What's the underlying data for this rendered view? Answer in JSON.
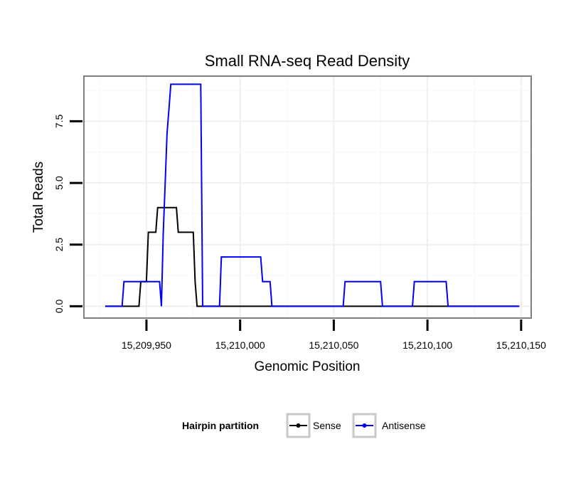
{
  "chart_data": {
    "type": "line",
    "title": "Small RNA-seq Read Density",
    "xlabel": "Genomic Position",
    "ylabel": "Total Reads",
    "xlim": [
      15209917,
      15210155
    ],
    "ylim": [
      -0.45,
      9.3
    ],
    "x_ticks": [
      15209950,
      15210000,
      15210050,
      15210100,
      15210150
    ],
    "x_tick_labels": [
      "15,209,950",
      "15,210,000",
      "15,210,050",
      "15,210,100",
      "15,210,150"
    ],
    "y_ticks": [
      0,
      2.5,
      5,
      7.5
    ],
    "y_tick_labels": [
      "0.0",
      "2.5",
      "5.0",
      "7.5"
    ],
    "grid": true,
    "legend": {
      "title": "Hairpin partition",
      "position": "bottom",
      "entries": [
        "Sense",
        "Antisense"
      ]
    },
    "series": [
      {
        "name": "Sense",
        "color": "#000000",
        "points": [
          [
            15209928,
            0
          ],
          [
            15209946,
            0
          ],
          [
            15209947,
            1
          ],
          [
            15209950,
            1
          ],
          [
            15209951,
            3
          ],
          [
            15209955,
            3
          ],
          [
            15209956,
            4
          ],
          [
            15209966,
            4
          ],
          [
            15209967,
            3
          ],
          [
            15209975,
            3
          ],
          [
            15209976,
            1
          ],
          [
            15209977,
            0
          ],
          [
            15210149,
            0
          ]
        ]
      },
      {
        "name": "Antisense",
        "color": "#0000ff",
        "points": [
          [
            15209928,
            0
          ],
          [
            15209937,
            0
          ],
          [
            15209938,
            1
          ],
          [
            15209946,
            1
          ],
          [
            15209947,
            1
          ],
          [
            15209957,
            1
          ],
          [
            15209958,
            0
          ],
          [
            15209959,
            3
          ],
          [
            15209960,
            5
          ],
          [
            15209961,
            7
          ],
          [
            15209962,
            8
          ],
          [
            15209963,
            9
          ],
          [
            15209979,
            9
          ],
          [
            15209980,
            0
          ],
          [
            15209989,
            0
          ],
          [
            15209990,
            2
          ],
          [
            15210011,
            2
          ],
          [
            15210012,
            1
          ],
          [
            15210016,
            1
          ],
          [
            15210017,
            0
          ],
          [
            15210055,
            0
          ],
          [
            15210056,
            1
          ],
          [
            15210075,
            1
          ],
          [
            15210076,
            0
          ],
          [
            15210092,
            0
          ],
          [
            15210093,
            1
          ],
          [
            15210110,
            1
          ],
          [
            15210111,
            0
          ],
          [
            15210149,
            0
          ]
        ]
      }
    ]
  }
}
